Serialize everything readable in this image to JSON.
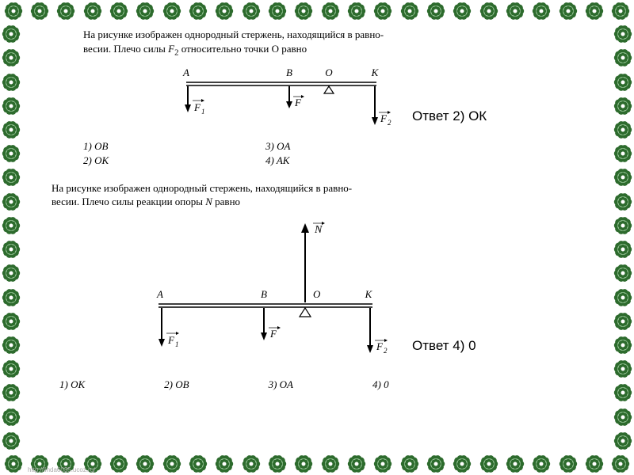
{
  "border": {
    "flower_color_outer": "#2d6b2d",
    "flower_color_inner": "#8fbf8f",
    "count_horizontal": 24,
    "count_vertical": 18
  },
  "problem1": {
    "text_line1": "На рисунке изображен однородный стержень, находящийся в равно-",
    "text_line2": "весии. Плечо силы F₂ относительно точки O равно",
    "labels": {
      "A": "A",
      "B": "B",
      "O": "O",
      "K": "K"
    },
    "forces": {
      "F1": "F₁",
      "F": "F",
      "F2": "F₂"
    },
    "options": {
      "1": "1) OB",
      "2": "2) OK",
      "3": "3) OA",
      "4": "4) AK"
    },
    "answer": "Ответ 2) ОК"
  },
  "problem2": {
    "text_line1": "На рисунке изображен однородный стержень, находящийся в равно-",
    "text_line2": "весии. Плечо силы реакции опоры N равно",
    "labels": {
      "A": "A",
      "B": "B",
      "O": "O",
      "K": "K",
      "N": "N"
    },
    "forces": {
      "F1": "F₁",
      "F": "F",
      "F2": "F₂"
    },
    "options": {
      "1": "1) OK",
      "2": "2) OB",
      "3": "3) OA",
      "4": "4) 0"
    },
    "answer": "Ответ 4) 0"
  },
  "watermark": "http://linda6035.ucoz.ru/",
  "diagram": {
    "line_color": "#000000",
    "line_width": 1.5,
    "font_size_label": 13,
    "font_style_force": "italic"
  }
}
